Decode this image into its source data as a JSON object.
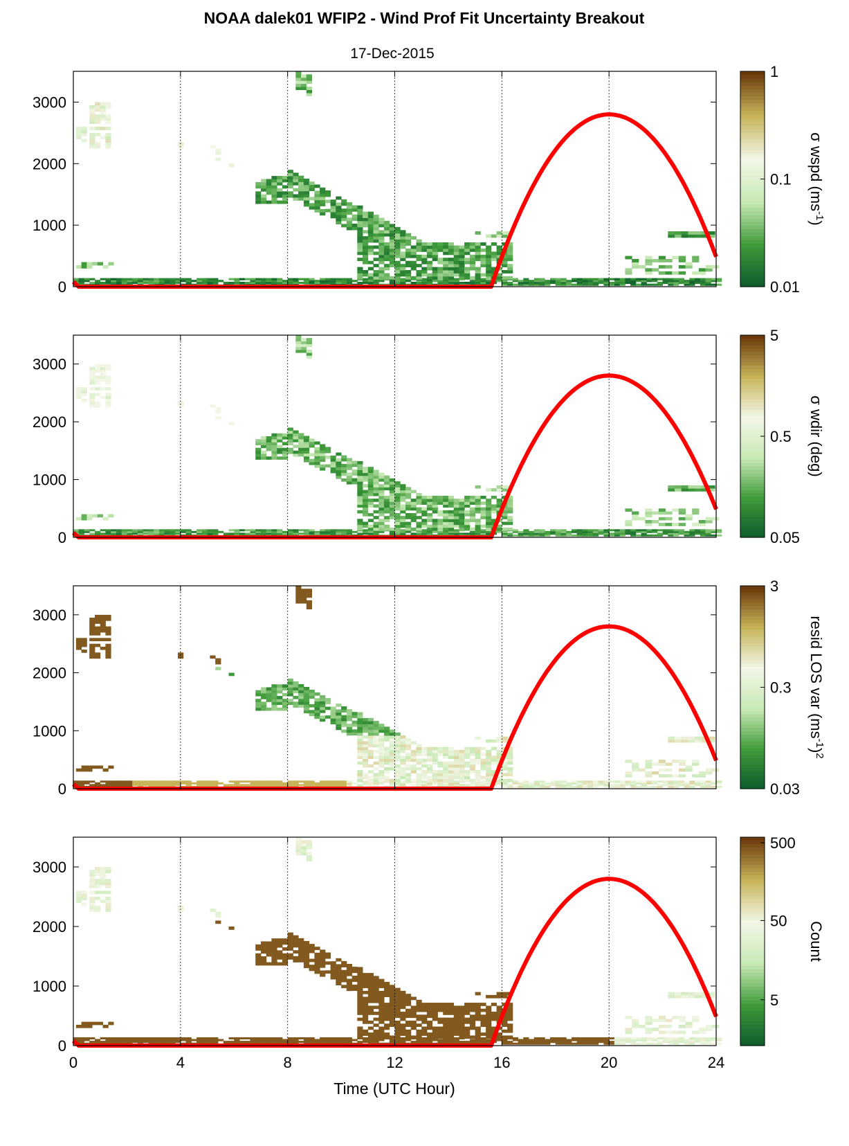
{
  "title": "NOAA dalek01 WFIP2 - Wind Prof Fit Uncertainty Breakout",
  "subtitle": "17-Dec-2015",
  "xlabel": "Time (UTC Hour)",
  "colors": {
    "red_curve": "#ff0000",
    "dark_green": "#0a5a2c",
    "mid_green": "#3f9a3a",
    "light_green": "#c7e9b4",
    "pale": "#f2f6e6",
    "tan": "#c7b45a",
    "dark_brown": "#6b3a0a"
  },
  "chart_data": [
    {
      "type": "heatmap",
      "panel": "wspd",
      "xlim": [
        0,
        24
      ],
      "ylim": [
        0,
        3500
      ],
      "xticks": [
        0,
        4,
        8,
        12,
        16,
        20,
        24
      ],
      "yticks": [
        0,
        1000,
        2000,
        3000
      ],
      "ytick_labels": [
        "0",
        "1000",
        "2000",
        "3000"
      ],
      "vertical_gridlines": [
        4,
        8,
        12,
        16,
        20
      ],
      "colorbar": {
        "label": "σ wspd (ms",
        "label_sup": "-1",
        "label_tail": ")",
        "ticks": [
          "1",
          "0.1",
          "0.01"
        ],
        "scale": "log",
        "range": [
          0.01,
          1
        ]
      },
      "red_curve": {
        "start_hour": 15.6,
        "end_hour": 24,
        "peak_hour": 20,
        "peak_height": 2800
      }
    },
    {
      "type": "heatmap",
      "panel": "wdir",
      "xlim": [
        0,
        24
      ],
      "ylim": [
        0,
        3500
      ],
      "xticks": [
        0,
        4,
        8,
        12,
        16,
        20,
        24
      ],
      "yticks": [
        0,
        1000,
        2000,
        3000
      ],
      "ytick_labels": [
        "0",
        "1000",
        "2000",
        "3000"
      ],
      "vertical_gridlines": [
        4,
        8,
        12,
        16,
        20
      ],
      "colorbar": {
        "label": "σ wdir (deg)",
        "ticks": [
          "5",
          "0.5",
          "0.05"
        ],
        "scale": "log",
        "range": [
          0.05,
          5
        ]
      },
      "red_curve": {
        "start_hour": 15.6,
        "end_hour": 24,
        "peak_hour": 20,
        "peak_height": 2800
      }
    },
    {
      "type": "heatmap",
      "panel": "resid",
      "xlim": [
        0,
        24
      ],
      "ylim": [
        0,
        3500
      ],
      "xticks": [
        0,
        4,
        8,
        12,
        16,
        20,
        24
      ],
      "yticks": [
        0,
        1000,
        2000,
        3000
      ],
      "ytick_labels": [
        "0",
        "1000",
        "2000",
        "3000"
      ],
      "vertical_gridlines": [
        4,
        8,
        12,
        16,
        20
      ],
      "colorbar": {
        "label": "resid LOS var (ms",
        "label_sup": "-1",
        "label_tail": ")",
        "label_sup2": "2",
        "ticks": [
          "3",
          "0.3",
          "0.03"
        ],
        "scale": "log",
        "range": [
          0.03,
          3
        ]
      },
      "red_curve": {
        "start_hour": 15.6,
        "end_hour": 24,
        "peak_hour": 20,
        "peak_height": 2800
      }
    },
    {
      "type": "heatmap",
      "panel": "count",
      "xlim": [
        0,
        24
      ],
      "ylim": [
        0,
        3500
      ],
      "xticks": [
        0,
        4,
        8,
        12,
        16,
        20,
        24
      ],
      "xtick_labels": [
        "0",
        "4",
        "8",
        "12",
        "16",
        "20",
        "24"
      ],
      "yticks": [
        0,
        1000,
        2000,
        3000
      ],
      "ytick_labels": [
        "0",
        "1000",
        "2000",
        "3000"
      ],
      "vertical_gridlines": [
        4,
        8,
        12,
        16,
        20
      ],
      "colorbar": {
        "label": "Count",
        "ticks": [
          "500",
          "50",
          "5"
        ],
        "scale": "log",
        "range": [
          1,
          500
        ]
      },
      "red_curve": {
        "start_hour": 15.6,
        "end_hour": 24,
        "peak_hour": 20,
        "peak_height": 2800
      }
    }
  ]
}
